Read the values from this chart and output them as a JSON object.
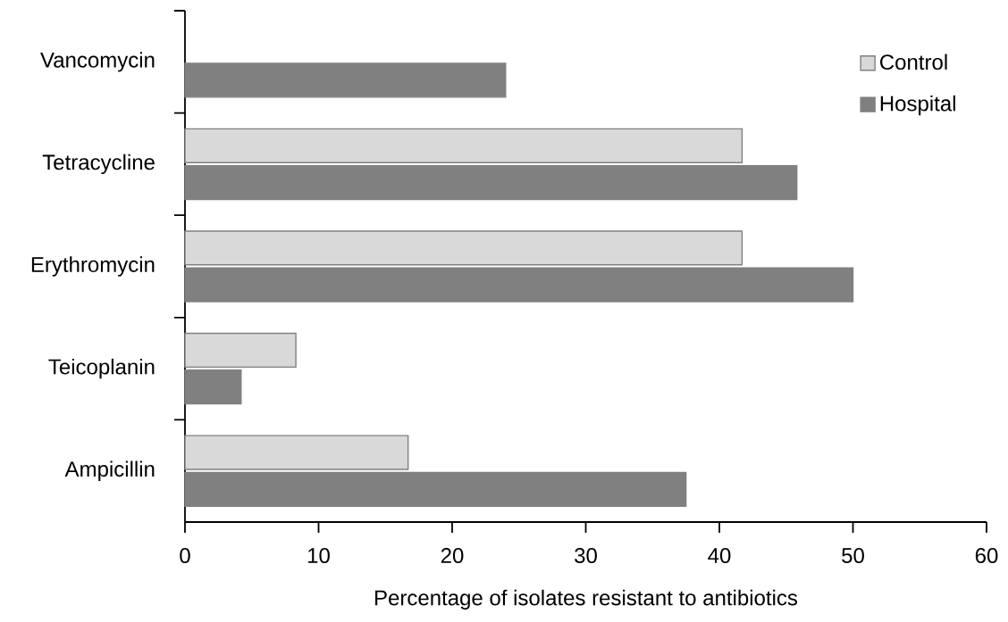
{
  "chart_data": {
    "type": "bar",
    "orientation": "horizontal",
    "xlabel": "Percentage of isolates resistant to antibiotics",
    "categories": [
      "Vancomycin",
      "Tetracycline",
      "Erythromycin",
      "Teicoplanin",
      "Ampicillin"
    ],
    "series": [
      {
        "name": "Control",
        "color": "#d9d9d9",
        "values": [
          null,
          41.7,
          41.7,
          8.3,
          16.7
        ]
      },
      {
        "name": "Hospital",
        "color": "#808080",
        "values": [
          24,
          45.8,
          50,
          4.2,
          37.5
        ]
      }
    ],
    "xlim": [
      0,
      60
    ],
    "xticks": [
      0,
      10,
      20,
      30,
      40,
      50,
      60
    ],
    "legend": "top right"
  }
}
